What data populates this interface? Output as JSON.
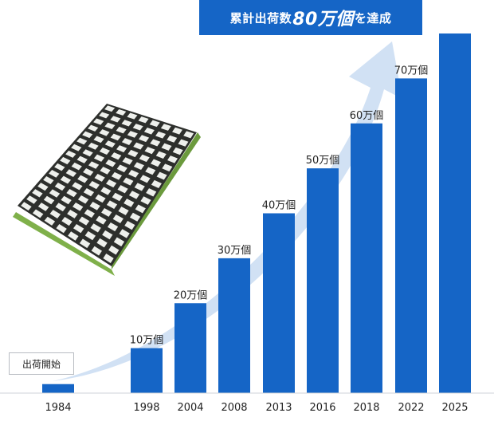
{
  "banner": {
    "prefix": "累計出荷数",
    "highlight": "80万個",
    "suffix": "を達成"
  },
  "start_label": "出荷開始",
  "colors": {
    "bar": "#1565c6",
    "arrow": "#c9dcf2",
    "baseline": "#cfd3d8",
    "text": "#222222"
  },
  "product_image": "grating-panel-illustration",
  "chart_data": {
    "type": "bar",
    "title": "累計出荷数80万個を達成",
    "categories": [
      "1984",
      "1998",
      "2004",
      "2008",
      "2013",
      "2016",
      "2018",
      "2022",
      "2025"
    ],
    "values": [
      2,
      10,
      20,
      30,
      40,
      50,
      60,
      70,
      80
    ],
    "value_unit": "万個",
    "data_labels": [
      "",
      "10万個",
      "20万個",
      "30万個",
      "40万個",
      "50万個",
      "60万個",
      "70万個",
      ""
    ],
    "annotations": [
      {
        "category": "1984",
        "text": "出荷開始"
      }
    ],
    "xlabel": "",
    "ylabel": "",
    "ylim": [
      0,
      80
    ],
    "grid": false
  }
}
